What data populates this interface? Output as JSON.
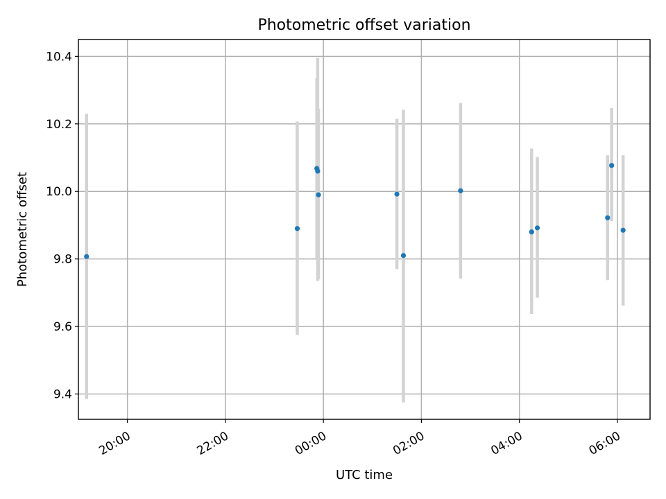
{
  "chart_data": {
    "type": "scatter",
    "title": "Photometric offset variation",
    "xlabel": "UTC time",
    "ylabel": "Photometric offset",
    "x_axis_type": "time",
    "xlim": [
      "19:00",
      "06:40"
    ],
    "ylim": [
      9.325,
      10.45
    ],
    "x_ticks": [
      "20:00",
      "22:00",
      "00:00",
      "02:00",
      "04:00",
      "06:00"
    ],
    "y_ticks": [
      9.4,
      9.6,
      9.8,
      10.0,
      10.2,
      10.4
    ],
    "grid": true,
    "legend": "none",
    "colors": {
      "marker": "#1f77b4",
      "errorbar": "#d3d3d3"
    },
    "points": [
      {
        "t": "19:10",
        "y": 9.807,
        "lo": 9.385,
        "hi": 10.23
      },
      {
        "t": "23:28",
        "y": 9.89,
        "lo": 9.575,
        "hi": 10.207
      },
      {
        "t": "23:52",
        "y": 10.068,
        "lo": 9.8,
        "hi": 10.335
      },
      {
        "t": "23:53",
        "y": 10.06,
        "lo": 9.735,
        "hi": 10.395
      },
      {
        "t": "23:54",
        "y": 9.99,
        "lo": 9.74,
        "hi": 10.245
      },
      {
        "t": "01:30",
        "y": 9.992,
        "lo": 9.77,
        "hi": 10.215
      },
      {
        "t": "01:38",
        "y": 9.81,
        "lo": 9.375,
        "hi": 10.242
      },
      {
        "t": "02:48",
        "y": 10.002,
        "lo": 9.742,
        "hi": 10.262
      },
      {
        "t": "04:15",
        "y": 9.88,
        "lo": 9.637,
        "hi": 10.127
      },
      {
        "t": "04:22",
        "y": 9.892,
        "lo": 9.685,
        "hi": 10.102
      },
      {
        "t": "05:48",
        "y": 9.922,
        "lo": 9.737,
        "hi": 10.107
      },
      {
        "t": "05:53",
        "y": 10.077,
        "lo": 9.912,
        "hi": 10.247
      },
      {
        "t": "06:07",
        "y": 9.885,
        "lo": 9.662,
        "hi": 10.107
      }
    ]
  }
}
